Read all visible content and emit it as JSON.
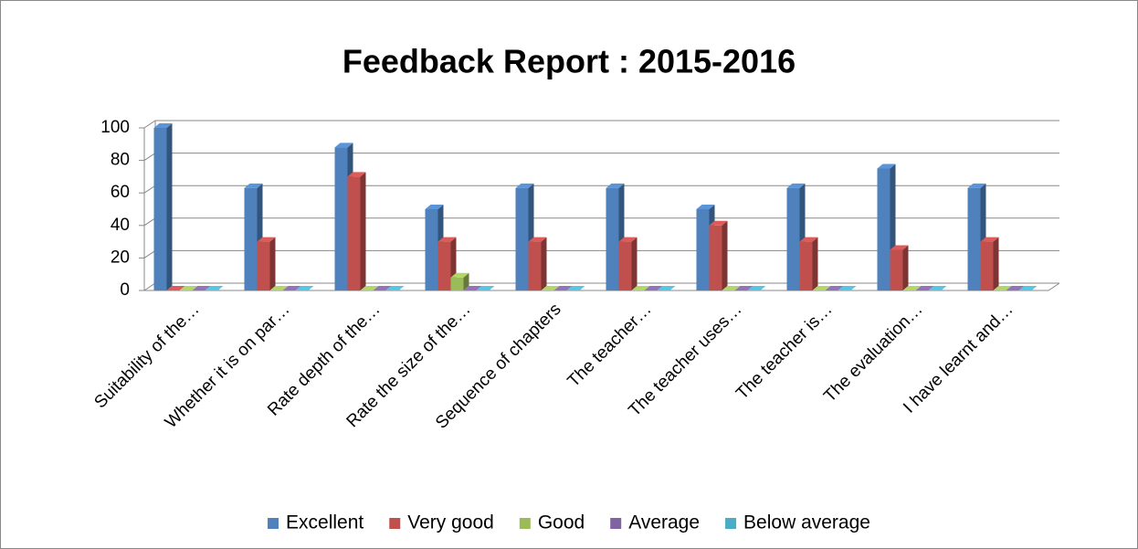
{
  "chart_data": {
    "type": "bar3d",
    "title": "Feedback Report : 2015-2016",
    "categories": [
      "Suitability of the…",
      "Whether it is on par…",
      "Rate depth of the…",
      "Rate the size of the…",
      "Sequence of chapters",
      "The teacher…",
      "The teacher uses…",
      "The teacher is…",
      "The evaluation…",
      "I have learnt and…"
    ],
    "series": [
      {
        "name": "Excellent",
        "color": "#4f81bd",
        "values": [
          100,
          63,
          88,
          50,
          63,
          63,
          50,
          63,
          75,
          63
        ]
      },
      {
        "name": "Very good",
        "color": "#c0504d",
        "values": [
          0,
          30,
          70,
          30,
          30,
          30,
          40,
          30,
          25,
          30
        ]
      },
      {
        "name": "Good",
        "color": "#9bbb59",
        "values": [
          0,
          0,
          0,
          8,
          0,
          0,
          0,
          0,
          0,
          0
        ]
      },
      {
        "name": "Average",
        "color": "#8064a2",
        "values": [
          0,
          0,
          0,
          0,
          0,
          0,
          0,
          0,
          0,
          0
        ]
      },
      {
        "name": "Below average",
        "color": "#4bacc6",
        "values": [
          0,
          0,
          0,
          0,
          0,
          0,
          0,
          0,
          0,
          0
        ]
      }
    ],
    "ylim": [
      0,
      100
    ],
    "yticks": [
      0,
      20,
      40,
      60,
      80,
      100
    ],
    "grid": true,
    "legend": "bottom"
  }
}
